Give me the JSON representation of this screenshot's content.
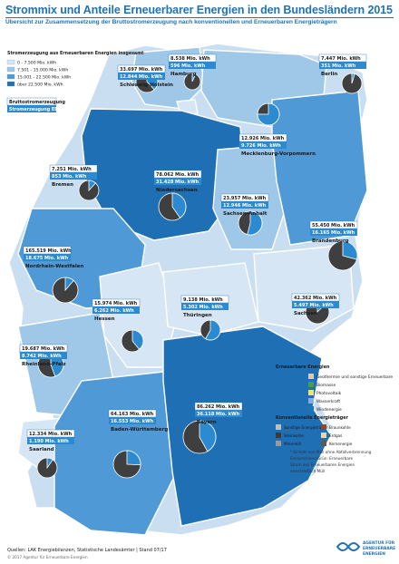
{
  "header": {
    "title": "Strommix und Anteile Erneuerbarer Energien in den Bundesländern 2015",
    "subtitle": "Übersicht zur Zusammensetzung der Bruttostromerzeugung nach konventionellen und Erneuerbaren Energieträgern"
  },
  "legend_top": {
    "title": "Stromerzeugung aus Erneuerbaren Energien insgesamt",
    "classes": [
      "0 - 7.500 Mio. kWh",
      "7.501 - 15.000 Mio. kWh",
      "15.001 - 22.500 Mio. kWh",
      "über 22.500 Mio. kWh"
    ],
    "box_title": "Bruttostromerzeugung",
    "box_sub": "Stromerzeugung EE"
  },
  "legend_bottom": {
    "conv_title": "Konventionelle Energieträger",
    "ee_title": "Erneuerbare Energien",
    "conv_items": [
      "Sonstige Energieträger",
      "Braunkohle",
      "Steinkohle",
      "Erdgas",
      "Mineralöl",
      "Kernenergie"
    ],
    "ee_items": [
      "Geothermie und sonstige Erneuerbare",
      "Biomasse",
      "Photovoltaik",
      "Wasserkraft",
      "Windenergie"
    ]
  },
  "notes": [
    "* Einsatz von Müll ohne Abfallverbrennung",
    "Entsprechend Grün: Erneuerbare",
    "Strom aus Erneuerbaren Energien",
    "einschließlich Müll"
  ],
  "footer": {
    "source": "Quellen: LAK Energiebilanzen, Statistische Landesämter | Stand 07/17",
    "copyright": "© 2017 Agentur für Erneuerbare Energien",
    "logo_text": [
      "AGENTUR FÜR",
      "ERNEUERBARE",
      "ENERGIEN"
    ]
  },
  "colors": {
    "water": "#ffffff",
    "class1": "#d6e6f4",
    "class2": "#9ec7e8",
    "class3": "#4f9ad6",
    "class4": "#1f6fb5",
    "title": "#1f73b7",
    "ee_box": "#2b8ad0"
  },
  "chart_data": {
    "type": "pie",
    "unit": "Mio. kWh",
    "states": [
      {
        "name": "Schleswig-Holstein",
        "total": "33.697 Mio. kWh",
        "ee": "12.844 Mio. kWh",
        "share_ee": 38.1,
        "class": 2
      },
      {
        "name": "Hamburg",
        "total": "8.538 Mio. kWh",
        "ee": "596 Mio. kWh",
        "share_ee": 7.0,
        "class": 1
      },
      {
        "name": "Berlin",
        "total": "7.447 Mio. kWh",
        "ee": "351 Mio. kWh",
        "share_ee": 4.7,
        "class": 1
      },
      {
        "name": "Mecklenburg-Vorpommern",
        "total": "12.926 Mio. kWh",
        "ee": "9.726 Mio. kWh",
        "share_ee": 75.2,
        "class": 2
      },
      {
        "name": "Bremen",
        "total": "7.251 Mio. kWh",
        "ee": "853 Mio. kWh",
        "share_ee": 11.8,
        "class": 1
      },
      {
        "name": "Niedersachsen",
        "total": "78.062 Mio. kWh",
        "ee": "31.428 Mio. kWh",
        "share_ee": 40.3,
        "class": 4
      },
      {
        "name": "Sachsen-Anhalt",
        "total": "23.957 Mio. kWh",
        "ee": "12.946 Mio. kWh",
        "share_ee": 54.0,
        "class": 2
      },
      {
        "name": "Brandenburg",
        "total": "55.450 Mio. kWh",
        "ee": "16.165 Mio. kWh",
        "share_ee": 29.2,
        "class": 3
      },
      {
        "name": "Nordrhein-Westfalen",
        "total": "165.519 Mio. kWh",
        "ee": "18.675 Mio. kWh",
        "share_ee": 11.3,
        "class": 3
      },
      {
        "name": "Hessen",
        "total": "15.974 Mio. kWh",
        "ee": "6.262 Mio. kWh",
        "share_ee": 39.2,
        "class": 1
      },
      {
        "name": "Thüringen",
        "total": "9.138 Mio. kWh",
        "ee": "5.302 Mio. kWh",
        "share_ee": 58.0,
        "class": 1
      },
      {
        "name": "Sachsen",
        "total": "42.362 Mio. kWh",
        "ee": "5.497 Mio. kWh",
        "share_ee": 13.0,
        "class": 1
      },
      {
        "name": "Rheinland-Pfalz",
        "total": "19.687 Mio. kWh",
        "ee": "8.742 Mio. kWh",
        "share_ee": 44.4,
        "class": 2
      },
      {
        "name": "Saarland",
        "total": "12.334 Mio. kWh",
        "ee": "1.190 Mio. kWh",
        "share_ee": 9.6,
        "class": 1
      },
      {
        "name": "Baden-Württemberg",
        "total": "64.163 Mio. kWh",
        "ee": "16.553 Mio. kWh",
        "share_ee": 25.8,
        "class": 3
      },
      {
        "name": "Bayern",
        "total": "86.262 Mio. kWh",
        "ee": "36.118 Mio. kWh",
        "share_ee": 41.9,
        "class": 4
      }
    ]
  }
}
